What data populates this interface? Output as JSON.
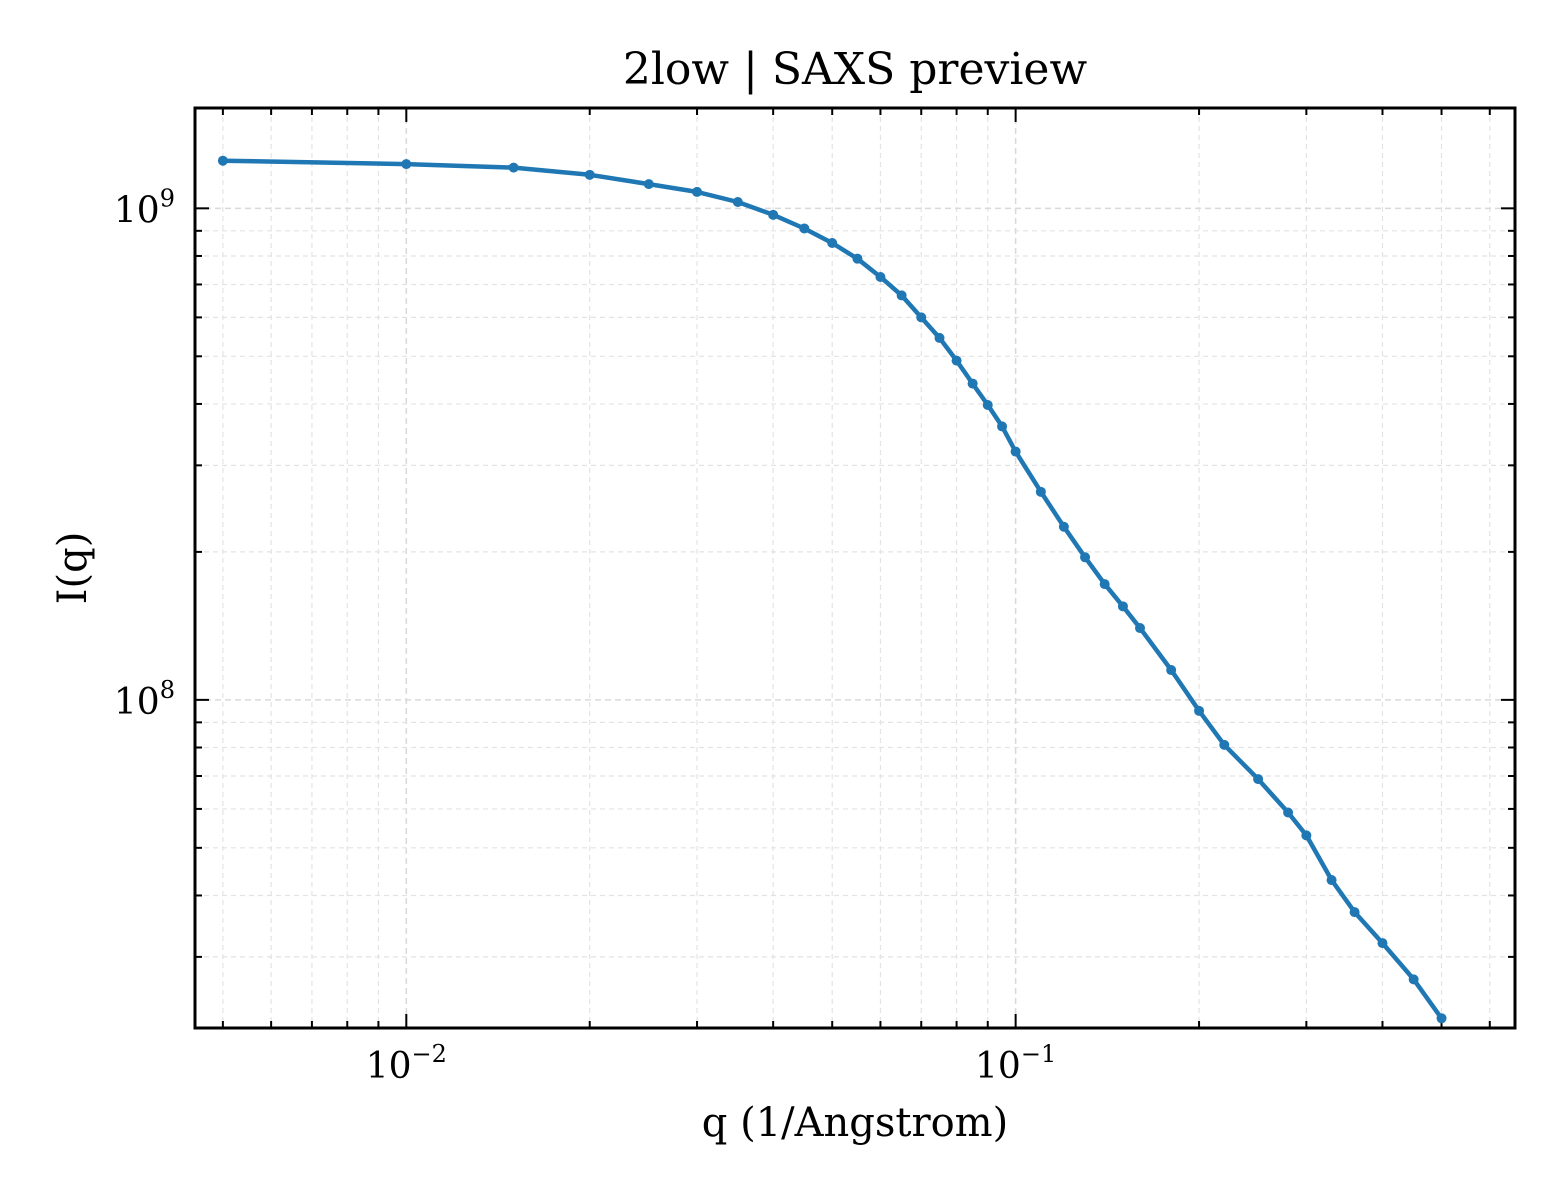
{
  "chart_data": {
    "type": "line",
    "title": "2low | SAXS preview",
    "xlabel": "q (1/Angstrom)",
    "ylabel": "I(q)",
    "xscale": "log",
    "yscale": "log",
    "xlim": [
      0.0045,
      0.66
    ],
    "ylim": [
      21500000,
      1600000000
    ],
    "grid": true,
    "color": "#1f77b4",
    "x_ticks": [
      {
        "base": "10",
        "exp": "−2",
        "value": 0.01
      },
      {
        "base": "10",
        "exp": "−1",
        "value": 0.1
      }
    ],
    "y_ticks": [
      {
        "base": "10",
        "exp": "8",
        "value": 100000000
      },
      {
        "base": "10",
        "exp": "9",
        "value": 1000000000
      }
    ],
    "series": [
      {
        "x": [
          0.005,
          0.01,
          0.015,
          0.02,
          0.025,
          0.03,
          0.035,
          0.04,
          0.045,
          0.05,
          0.055,
          0.06,
          0.065,
          0.07,
          0.075,
          0.08,
          0.085,
          0.09,
          0.095,
          0.1,
          0.11,
          0.12,
          0.13,
          0.14,
          0.15,
          0.16,
          0.18,
          0.2,
          0.22,
          0.25,
          0.28,
          0.3,
          0.33,
          0.36,
          0.4,
          0.45,
          0.5
        ],
        "y": [
          1250000000,
          1230000000,
          1210000000,
          1170000000,
          1120000000,
          1080000000,
          1030000000,
          970000000,
          910000000,
          850000000,
          790000000,
          725000000,
          665000000,
          600000000,
          545000000,
          490000000,
          440000000,
          398000000,
          360000000,
          320000000,
          265000000,
          225000000,
          195000000,
          172000000,
          155000000,
          140000000,
          115000000,
          95000000,
          81000000,
          69000000,
          59000000,
          53000000,
          43000000,
          37000000,
          32000000,
          27000000,
          22500000
        ]
      }
    ]
  }
}
